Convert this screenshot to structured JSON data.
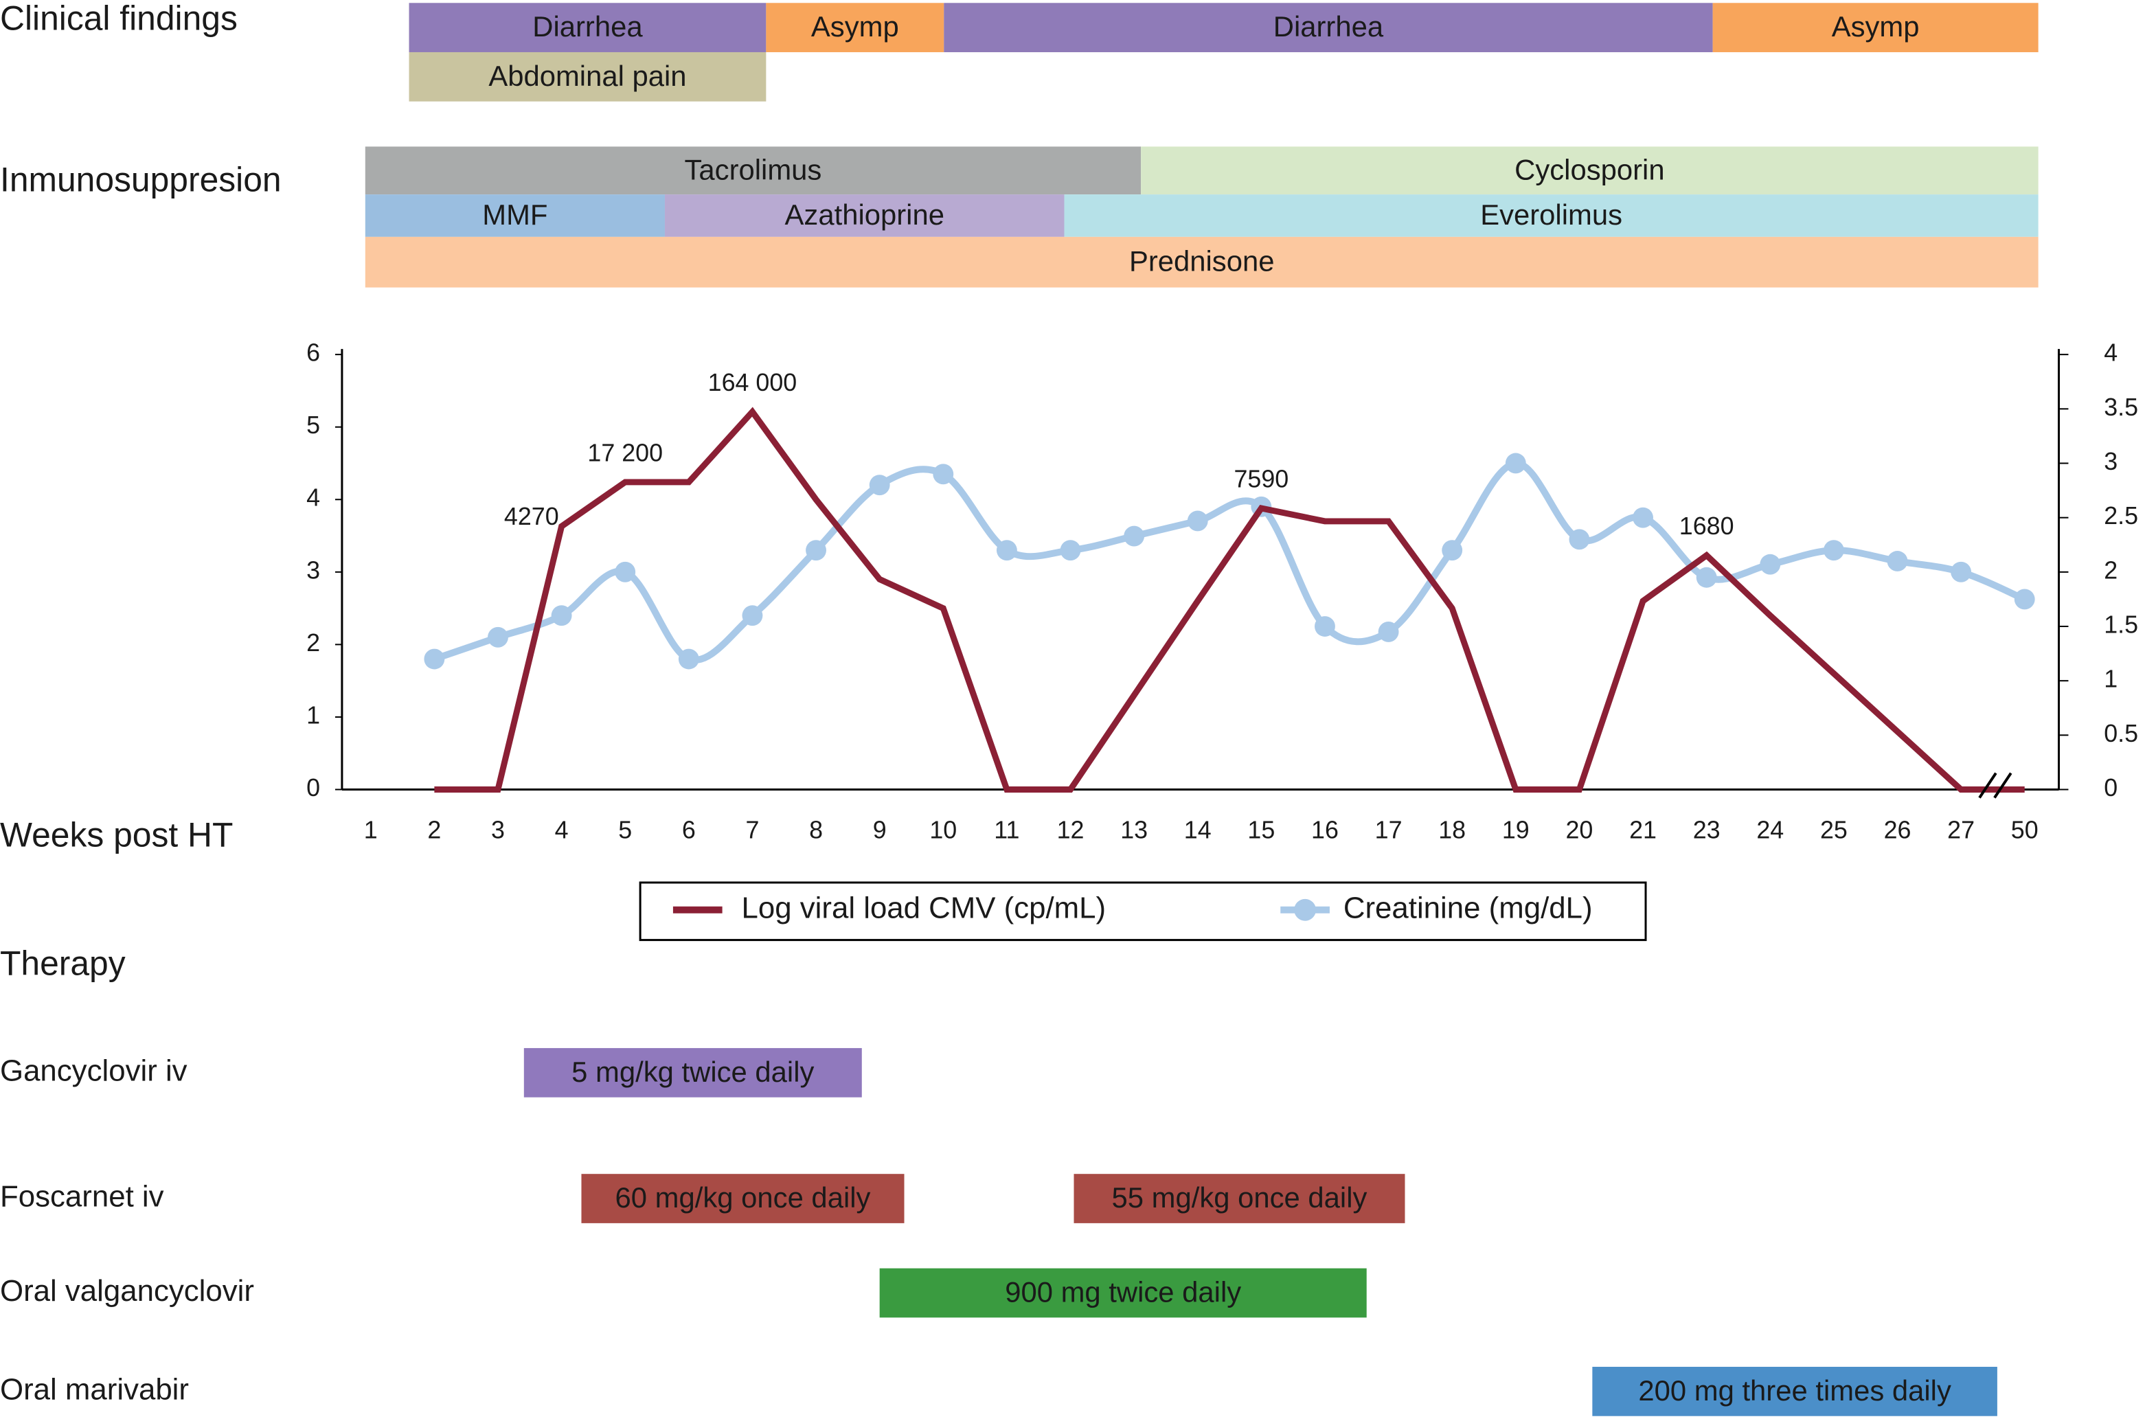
{
  "clinical_findings": {
    "title": "Clinical findings",
    "bars": [
      {
        "label": "Diarrhea",
        "color": "#8f7bb8"
      },
      {
        "label": "Asymp",
        "color": "#f8a55b"
      },
      {
        "label": "Diarrhea",
        "color": "#8f7bb8"
      },
      {
        "label": "Asymp",
        "color": "#f8a55b"
      },
      {
        "label": "Abdominal pain",
        "color": "#c9c49f"
      }
    ]
  },
  "immunosuppression": {
    "title": "Inmunosuppresion",
    "bars": [
      {
        "label": "Tacrolimus",
        "color": "#a9abab"
      },
      {
        "label": "Cyclosporin",
        "color": "#d7e8c8"
      },
      {
        "label": "MMF",
        "color": "#9abee0"
      },
      {
        "label": "Azathioprine",
        "color": "#b8aad2"
      },
      {
        "label": "Everolimus",
        "color": "#b6e1e8"
      },
      {
        "label": "Prednisone",
        "color": "#fcc89f"
      }
    ]
  },
  "chart_data": {
    "type": "line",
    "x_label": "Weeks post HT",
    "categories": [
      "1",
      "2",
      "3",
      "4",
      "5",
      "6",
      "7",
      "8",
      "9",
      "10",
      "11",
      "12",
      "13",
      "14",
      "15",
      "16",
      "17",
      "18",
      "19",
      "20",
      "21",
      "23",
      "24",
      "25",
      "26",
      "27",
      "50"
    ],
    "series": [
      {
        "name": "Log viral load CMV (cp/mL)",
        "color": "#8b2035",
        "values": [
          null,
          0,
          0,
          3.63,
          4.24,
          4.24,
          5.21,
          4.0,
          2.9,
          2.5,
          0,
          0,
          1.3,
          2.6,
          3.88,
          3.7,
          3.7,
          2.5,
          0,
          0,
          2.6,
          3.23,
          2.4,
          1.6,
          0.8,
          0,
          0
        ],
        "value_labels": [
          null,
          null,
          null,
          "4270",
          "17 200",
          null,
          "164 000",
          null,
          null,
          null,
          null,
          null,
          null,
          null,
          "7590",
          null,
          null,
          null,
          null,
          null,
          null,
          "1680",
          null,
          null,
          null,
          null,
          null
        ]
      },
      {
        "name": "Creatinine (mg/dL)",
        "color": "#a9c9e8",
        "axis": "y2",
        "values": [
          null,
          1.2,
          1.4,
          1.6,
          2.0,
          1.2,
          1.6,
          2.2,
          2.8,
          2.9,
          2.2,
          2.2,
          2.33,
          2.47,
          2.6,
          1.5,
          1.45,
          2.2,
          3.0,
          2.3,
          2.5,
          1.95,
          2.07,
          2.2,
          2.1,
          2.0,
          1.75
        ]
      }
    ],
    "ylim": [
      0,
      6
    ],
    "yticks": [
      0,
      1,
      2,
      3,
      4,
      5,
      6
    ],
    "y2lim": [
      0,
      4
    ],
    "y2ticks": [
      0,
      0.5,
      1,
      1.5,
      2,
      2.5,
      3,
      3.5,
      4
    ],
    "legend": "bottom"
  },
  "therapy": {
    "title": "Therapy",
    "rows": [
      {
        "label": "Gancyclovir iv",
        "bars": [
          {
            "label": "5 mg/kg twice daily",
            "color": "#9079bd"
          }
        ]
      },
      {
        "label": "Foscarnet iv",
        "bars": [
          {
            "label": "60 mg/kg once daily",
            "color": "#a84b45"
          },
          {
            "label": "55 mg/kg once daily",
            "color": "#a84b45"
          }
        ]
      },
      {
        "label": "Oral valgancyclovir",
        "bars": [
          {
            "label": "900 mg twice daily",
            "color": "#3a9b40"
          }
        ]
      },
      {
        "label": "Oral marivabir",
        "bars": [
          {
            "label": "200 mg three times daily",
            "color": "#4b8fc9"
          }
        ]
      }
    ]
  }
}
